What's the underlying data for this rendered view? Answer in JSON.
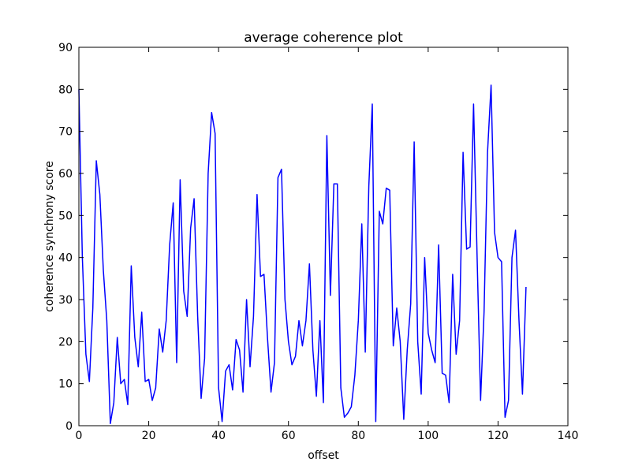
{
  "chart_data": {
    "type": "line",
    "title": "average coherence plot",
    "xlabel": "offset",
    "ylabel": "coherence synchrony score",
    "xlim": [
      0,
      140
    ],
    "ylim": [
      0,
      90
    ],
    "xticks": [
      0,
      20,
      40,
      60,
      80,
      100,
      120,
      140
    ],
    "yticks": [
      0,
      10,
      20,
      30,
      40,
      50,
      60,
      70,
      80,
      90
    ],
    "grid": false,
    "series": [
      {
        "name": "average coherence",
        "color": "#0000ff",
        "x": [
          0,
          1,
          2,
          3,
          4,
          5,
          6,
          7,
          8,
          9,
          10,
          11,
          12,
          13,
          14,
          15,
          16,
          17,
          18,
          19,
          20,
          21,
          22,
          23,
          24,
          25,
          26,
          27,
          28,
          29,
          30,
          31,
          32,
          33,
          34,
          35,
          36,
          37,
          38,
          39,
          40,
          41,
          42,
          43,
          44,
          45,
          46,
          47,
          48,
          49,
          50,
          51,
          52,
          53,
          54,
          55,
          56,
          57,
          58,
          59,
          60,
          61,
          62,
          63,
          64,
          65,
          66,
          67,
          68,
          69,
          70,
          71,
          72,
          73,
          74,
          75,
          76,
          77,
          78,
          79,
          80,
          81,
          82,
          83,
          84,
          85,
          86,
          87,
          88,
          89,
          90,
          91,
          92,
          93,
          94,
          95,
          96,
          97,
          98,
          99,
          100,
          101,
          102,
          103,
          104,
          105,
          106,
          107,
          108,
          109,
          110,
          111,
          112,
          113,
          114,
          115,
          116,
          117,
          118,
          119,
          120,
          121,
          122,
          123,
          124,
          125,
          126,
          127,
          128
        ],
        "values": [
          80,
          40,
          17,
          10.5,
          28,
          63,
          55,
          37,
          25,
          0.5,
          5.5,
          21,
          10,
          11,
          5,
          38,
          21,
          14,
          27,
          10.5,
          11,
          6,
          9,
          23,
          17.5,
          25,
          43,
          53,
          15,
          58.5,
          32,
          26,
          47,
          54,
          26,
          6.5,
          16,
          60,
          74.5,
          69.5,
          9,
          1,
          13,
          14.5,
          8.5,
          20.5,
          18,
          8,
          30,
          14,
          26,
          55,
          35.5,
          36,
          21,
          8,
          15,
          59,
          61,
          30,
          20,
          14.5,
          16.5,
          25,
          19,
          25,
          38.5,
          18,
          7,
          25,
          5.5,
          69,
          31,
          57.5,
          57.5,
          9,
          2,
          3,
          4.5,
          12,
          25,
          48,
          17.5,
          57,
          76.5,
          1,
          51,
          48,
          56.5,
          56,
          19,
          28,
          20,
          1.5,
          18,
          29,
          67.5,
          20,
          7.5,
          40,
          22,
          18,
          15,
          43,
          12.5,
          12,
          5.5,
          36,
          17,
          25,
          65,
          42,
          42.5,
          76.5,
          40,
          6,
          27,
          65,
          81,
          46,
          40,
          39,
          2,
          6,
          40,
          46.5,
          25,
          7.5,
          33
        ]
      }
    ]
  }
}
